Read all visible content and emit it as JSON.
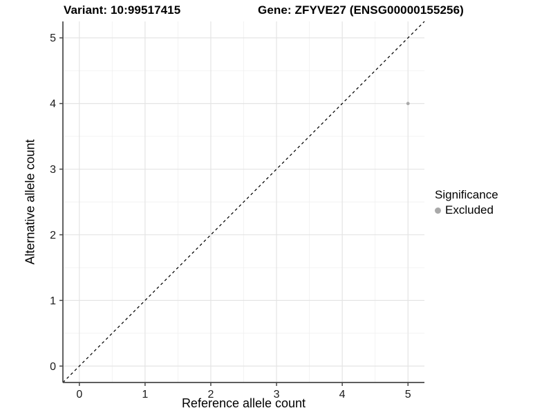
{
  "figure": {
    "title_left": "Variant: 10:99517415",
    "title_right": "Gene: ZFYVE27 (ENSG00000155256)"
  },
  "chart_data": {
    "type": "scatter",
    "title": "Variant: 10:99517415   Gene: ZFYVE27 (ENSG00000155256)",
    "xlabel": "Reference allele count",
    "ylabel": "Alternative allele count",
    "xlim": [
      -0.25,
      5.25
    ],
    "ylim": [
      -0.25,
      5.25
    ],
    "xticks": [
      0,
      1,
      2,
      3,
      4,
      5
    ],
    "yticks": [
      0,
      1,
      2,
      3,
      4,
      5
    ],
    "xticks_minor": [
      0.5,
      1.5,
      2.5,
      3.5,
      4.5
    ],
    "yticks_minor": [
      0.5,
      1.5,
      2.5,
      3.5,
      4.5
    ],
    "grid": "major+minor",
    "reference_line": {
      "type": "identity",
      "from": [
        -0.25,
        -0.25
      ],
      "to": [
        5.25,
        5.25
      ],
      "style": "dashed",
      "color": "#000000"
    },
    "series": [
      {
        "name": "Excluded",
        "marker": "circle",
        "color": "#a9a9a9",
        "points": [
          {
            "x": 5,
            "y": 4
          }
        ]
      }
    ],
    "legend": {
      "title": "Significance",
      "position": "right",
      "entries": [
        {
          "label": "Excluded",
          "color": "#a9a9a9"
        }
      ]
    }
  }
}
